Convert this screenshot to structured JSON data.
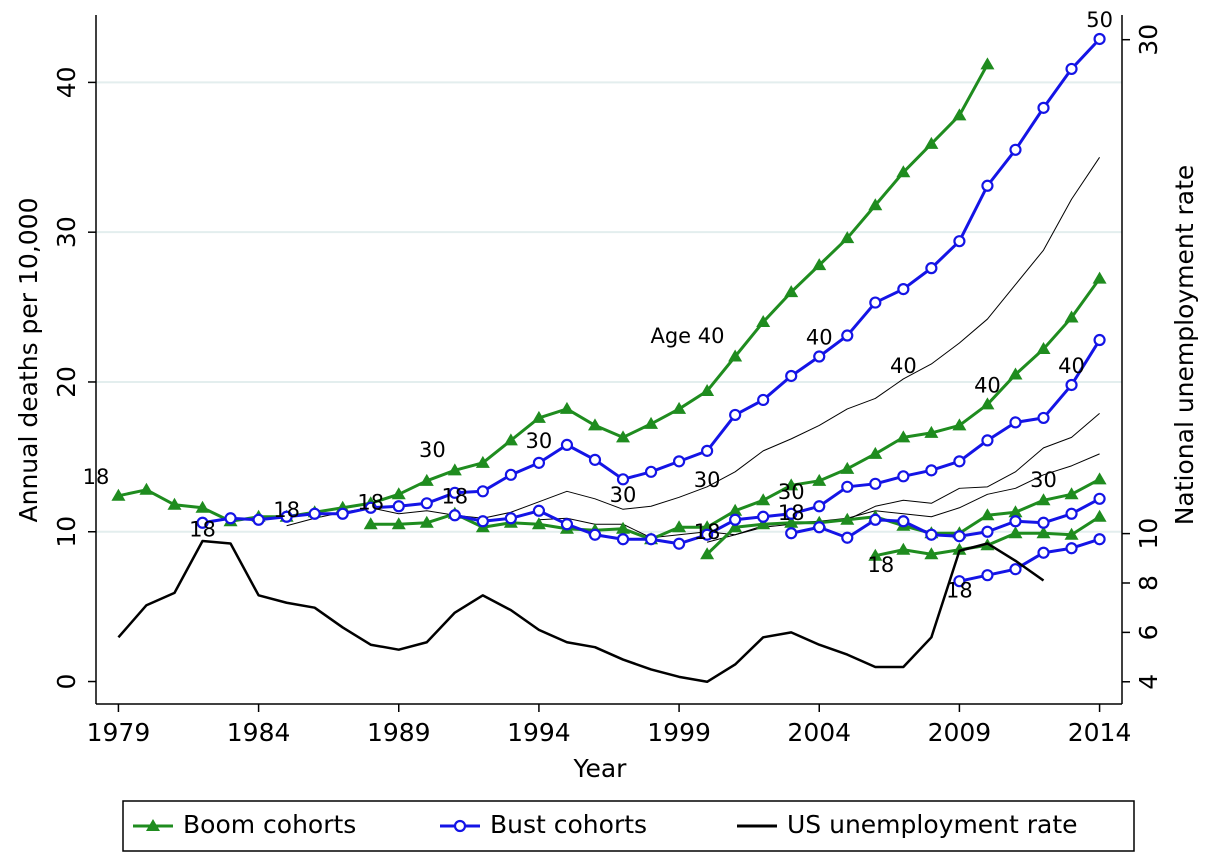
{
  "chart_data": {
    "type": "line",
    "x_label": "Year",
    "y_label": "Annual deaths per 10,000",
    "y2_label": "National unemployment rate",
    "years": [
      1979,
      1980,
      1981,
      1982,
      1983,
      1984,
      1985,
      1986,
      1987,
      1988,
      1989,
      1990,
      1991,
      1992,
      1993,
      1994,
      1995,
      1996,
      1997,
      1998,
      1999,
      2000,
      2001,
      2002,
      2003,
      2004,
      2005,
      2006,
      2007,
      2008,
      2009,
      2010,
      2011,
      2012,
      2013,
      2014
    ],
    "xlim": [
      1978.2,
      2014.8
    ],
    "xticks": [
      1979,
      1984,
      1989,
      1994,
      1999,
      2004,
      2009,
      2014
    ],
    "ylim": [
      -1.5,
      44.5
    ],
    "yticks": [
      0,
      10,
      20,
      30,
      40
    ],
    "y2lim": [
      3.1,
      31.0
    ],
    "y2ticks": [
      4,
      6,
      8,
      10,
      30
    ],
    "grid": true,
    "legend_position": "bottom",
    "series": [
      {
        "name": "Boom cohorts",
        "color": "#1f8c1f",
        "marker": "triangle",
        "lines": [
          [
            12.4,
            12.8,
            11.8,
            11.6,
            10.7,
            11.0,
            11.0,
            11.3,
            11.6,
            11.9,
            12.5,
            13.4,
            14.1,
            14.6,
            16.1,
            17.6,
            18.2,
            17.1,
            16.3,
            17.2,
            18.2,
            19.4,
            21.7,
            24.0,
            26.0,
            27.8,
            29.6,
            31.8,
            34.0,
            35.9,
            37.8,
            41.2,
            null,
            null,
            null,
            null
          ],
          [
            null,
            null,
            null,
            null,
            null,
            null,
            null,
            null,
            null,
            10.5,
            10.5,
            10.6,
            11.2,
            10.3,
            10.6,
            10.5,
            10.2,
            10.1,
            10.2,
            9.5,
            10.3,
            10.3,
            11.4,
            12.1,
            13.1,
            13.4,
            14.2,
            15.2,
            16.3,
            16.6,
            17.1,
            18.5,
            20.5,
            22.2,
            24.3,
            26.9
          ],
          [
            null,
            null,
            null,
            null,
            null,
            null,
            null,
            null,
            null,
            null,
            null,
            null,
            null,
            null,
            null,
            null,
            null,
            null,
            null,
            null,
            null,
            8.5,
            10.3,
            10.5,
            10.6,
            10.6,
            10.8,
            11.0,
            10.4,
            9.9,
            9.9,
            11.1,
            11.3,
            12.1,
            12.5,
            13.5
          ],
          [
            null,
            null,
            null,
            null,
            null,
            null,
            null,
            null,
            null,
            null,
            null,
            null,
            null,
            null,
            null,
            null,
            null,
            null,
            null,
            null,
            null,
            null,
            null,
            null,
            null,
            null,
            null,
            8.4,
            8.8,
            8.5,
            8.8,
            9.1,
            9.9,
            9.9,
            9.8,
            11.0
          ]
        ]
      },
      {
        "name": "Bust cohorts",
        "color": "#1414e6",
        "marker": "circle",
        "lines": [
          [
            null,
            null,
            null,
            10.6,
            10.9,
            10.8,
            11.0,
            11.2,
            11.2,
            11.6,
            11.7,
            11.9,
            12.6,
            12.7,
            13.8,
            14.6,
            15.8,
            14.8,
            13.5,
            14.0,
            14.7,
            15.4,
            17.8,
            18.8,
            20.4,
            21.7,
            23.1,
            25.3,
            26.2,
            27.6,
            29.4,
            33.1,
            35.5,
            38.3,
            40.9,
            42.9
          ],
          [
            null,
            null,
            null,
            null,
            null,
            null,
            null,
            null,
            null,
            null,
            null,
            null,
            11.1,
            10.7,
            10.9,
            11.4,
            10.5,
            9.8,
            9.5,
            9.5,
            9.2,
            9.8,
            10.8,
            11.0,
            11.2,
            11.7,
            13.0,
            13.2,
            13.7,
            14.1,
            14.7,
            16.1,
            17.3,
            17.6,
            19.8,
            22.8
          ],
          [
            null,
            null,
            null,
            null,
            null,
            null,
            null,
            null,
            null,
            null,
            null,
            null,
            null,
            null,
            null,
            null,
            null,
            null,
            null,
            null,
            null,
            null,
            null,
            null,
            9.9,
            10.3,
            9.6,
            10.8,
            10.7,
            9.8,
            9.7,
            10.0,
            10.7,
            10.6,
            11.2,
            12.2
          ],
          [
            null,
            null,
            null,
            null,
            null,
            null,
            null,
            null,
            null,
            null,
            null,
            null,
            null,
            null,
            null,
            null,
            null,
            null,
            null,
            null,
            null,
            null,
            null,
            null,
            null,
            null,
            null,
            null,
            null,
            null,
            6.7,
            7.1,
            7.5,
            8.6,
            8.9,
            9.5
          ]
        ]
      },
      {
        "name": "US unemployment rate",
        "color": "#000000",
        "axis": "y2",
        "values": [
          5.8,
          7.1,
          7.6,
          9.7,
          9.6,
          7.5,
          7.2,
          7.0,
          6.2,
          5.5,
          5.3,
          5.6,
          6.8,
          7.5,
          6.9,
          6.1,
          5.6,
          5.4,
          4.9,
          4.5,
          4.2,
          4.0,
          4.7,
          5.8,
          6.0,
          5.5,
          5.1,
          4.6,
          4.6,
          5.8,
          9.3,
          9.6,
          8.9,
          8.1,
          null,
          null
        ]
      }
    ],
    "trend_lines": {
      "color": "#000000",
      "lines": [
        [
          null,
          null,
          null,
          null,
          null,
          null,
          10.4,
          10.9,
          11.3,
          11.6,
          11.2,
          11.4,
          11.1,
          10.9,
          11.3,
          12.0,
          12.7,
          12.2,
          11.5,
          11.7,
          12.3,
          13.0,
          14.0,
          15.4,
          16.2,
          17.1,
          18.2,
          18.9,
          20.2,
          21.2,
          22.6,
          24.2,
          26.5,
          28.8,
          32.2,
          35.0
        ],
        [
          null,
          null,
          null,
          null,
          null,
          null,
          null,
          null,
          null,
          null,
          null,
          null,
          null,
          null,
          null,
          10.8,
          10.9,
          10.5,
          10.5,
          9.6,
          9.8,
          10.0,
          9.8,
          10.3,
          10.5,
          10.6,
          10.8,
          11.7,
          12.1,
          11.9,
          12.9,
          13.0,
          14.0,
          15.6,
          16.3,
          17.9
        ],
        [
          null,
          null,
          null,
          null,
          null,
          null,
          null,
          null,
          null,
          null,
          null,
          null,
          null,
          null,
          null,
          null,
          null,
          null,
          null,
          null,
          null,
          9.3,
          9.8,
          10.4,
          10.6,
          10.7,
          10.9,
          11.4,
          11.2,
          11.0,
          11.6,
          12.5,
          12.9,
          13.8,
          14.4,
          15.2
        ]
      ]
    },
    "annotations": [
      {
        "text": "18",
        "x": 1978.2,
        "y": 13.6
      },
      {
        "text": "18",
        "x": 1982.0,
        "y": 10.1
      },
      {
        "text": "18",
        "x": 1985.0,
        "y": 11.4
      },
      {
        "text": "18",
        "x": 1988.0,
        "y": 11.9
      },
      {
        "text": "18",
        "x": 1991.0,
        "y": 12.3
      },
      {
        "text": "30",
        "x": 1990.2,
        "y": 15.4
      },
      {
        "text": "30",
        "x": 1994.0,
        "y": 16.0
      },
      {
        "text": "30",
        "x": 1997.0,
        "y": 12.4
      },
      {
        "text": "Age 40",
        "x": 1999.3,
        "y": 23.0
      },
      {
        "text": "30",
        "x": 2000.0,
        "y": 13.4
      },
      {
        "text": "18",
        "x": 2000.0,
        "y": 9.9
      },
      {
        "text": "30",
        "x": 2003.0,
        "y": 12.6
      },
      {
        "text": "18",
        "x": 2003.0,
        "y": 11.2
      },
      {
        "text": "40",
        "x": 2004.0,
        "y": 22.9
      },
      {
        "text": "40",
        "x": 2007.0,
        "y": 21.0
      },
      {
        "text": "18",
        "x": 2006.2,
        "y": 7.7
      },
      {
        "text": "40",
        "x": 2010.0,
        "y": 19.7
      },
      {
        "text": "18",
        "x": 2009.0,
        "y": 6.0
      },
      {
        "text": "30",
        "x": 2012.0,
        "y": 13.4
      },
      {
        "text": "40",
        "x": 2013.0,
        "y": 21.0
      },
      {
        "text": "50",
        "x": 2014.0,
        "y": 44.1
      }
    ]
  }
}
